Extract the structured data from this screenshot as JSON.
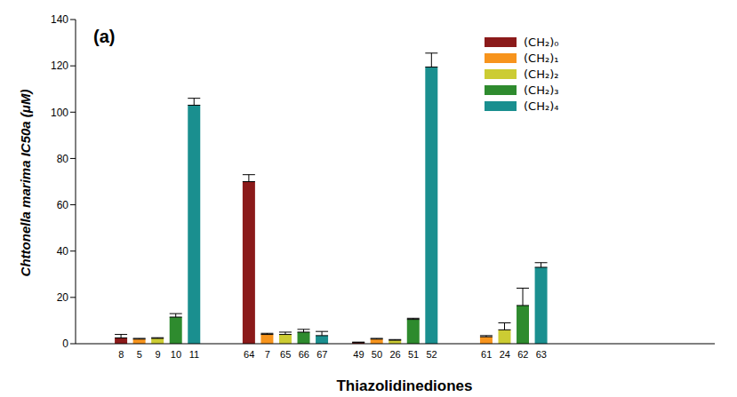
{
  "chart_data": {
    "type": "bar",
    "title": "(a)",
    "x_label": "Thiazolidinediones",
    "y_label": "Chttonella marima IC50a (μM)",
    "categories": [
      null,
      null,
      "8",
      "5",
      "9",
      "10",
      "11",
      null,
      null,
      "64",
      "7",
      "65",
      "66",
      "67",
      null,
      "49",
      "50",
      "26",
      "51",
      "52",
      null,
      null,
      "61",
      "24",
      "62",
      "63",
      null,
      null,
      null,
      null,
      null,
      null,
      null,
      null,
      null
    ],
    "series": [
      {
        "name": "(CH₂)₀",
        "color": "#8b1a1a",
        "values": [
          null,
          null,
          2.5,
          null,
          null,
          null,
          null,
          null,
          null,
          70,
          null,
          null,
          null,
          null,
          null,
          0.5,
          null,
          null,
          null,
          null,
          null,
          null,
          null,
          null,
          null,
          null,
          null,
          null,
          null,
          null,
          null,
          null,
          null,
          null,
          null
        ],
        "errors": [
          null,
          null,
          1.5,
          null,
          null,
          null,
          null,
          null,
          null,
          3,
          null,
          null,
          null,
          null,
          null,
          0.2,
          null,
          null,
          null,
          null,
          null,
          null,
          null,
          null,
          null,
          null,
          null,
          null,
          null,
          null,
          null,
          null,
          null,
          null,
          null
        ]
      },
      {
        "name": "(CH₂)₁",
        "color": "#f7941d",
        "values": [
          null,
          null,
          null,
          2,
          null,
          null,
          null,
          null,
          null,
          null,
          4,
          null,
          null,
          null,
          null,
          null,
          2,
          null,
          null,
          null,
          null,
          null,
          3,
          null,
          null,
          null,
          null,
          null,
          null,
          null,
          null,
          null,
          null,
          null,
          null
        ],
        "errors": [
          null,
          null,
          null,
          0.3,
          null,
          null,
          null,
          null,
          null,
          null,
          0.5,
          null,
          null,
          null,
          null,
          null,
          0.3,
          null,
          null,
          null,
          null,
          null,
          0.5,
          null,
          null,
          null,
          null,
          null,
          null,
          null,
          null,
          null,
          null,
          null,
          null
        ]
      },
      {
        "name": "(CH₂)₂",
        "color": "#cccc33",
        "values": [
          null,
          null,
          null,
          null,
          2.3,
          null,
          null,
          null,
          null,
          null,
          null,
          4,
          null,
          null,
          null,
          null,
          null,
          1.5,
          null,
          null,
          null,
          null,
          null,
          6,
          null,
          null,
          null,
          null,
          null,
          null,
          null,
          null,
          null,
          null,
          null
        ],
        "errors": [
          null,
          null,
          null,
          null,
          0.3,
          null,
          null,
          null,
          null,
          null,
          null,
          1,
          null,
          null,
          null,
          null,
          null,
          0.3,
          null,
          null,
          null,
          null,
          null,
          3,
          null,
          null,
          null,
          null,
          null,
          null,
          null,
          null,
          null,
          null,
          null
        ]
      },
      {
        "name": "(CH₂)₃",
        "color": "#2e8b2e",
        "values": [
          null,
          null,
          null,
          null,
          null,
          11.5,
          null,
          null,
          null,
          null,
          null,
          null,
          5,
          null,
          null,
          null,
          null,
          null,
          10.5,
          null,
          null,
          null,
          null,
          null,
          16.5,
          null,
          null,
          null,
          null,
          null,
          null,
          null,
          null,
          null,
          null
        ],
        "errors": [
          null,
          null,
          null,
          null,
          null,
          1.5,
          null,
          null,
          null,
          null,
          null,
          null,
          1.2,
          null,
          null,
          null,
          null,
          null,
          0.5,
          null,
          null,
          null,
          null,
          null,
          7.5,
          null,
          null,
          null,
          null,
          null,
          null,
          null,
          null,
          null,
          null
        ]
      },
      {
        "name": "(CH₂)₄",
        "color": "#1a8f8f",
        "values": [
          null,
          null,
          null,
          null,
          null,
          null,
          103,
          null,
          null,
          null,
          null,
          null,
          null,
          3.5,
          null,
          null,
          null,
          null,
          null,
          119.5,
          null,
          null,
          null,
          null,
          null,
          33,
          null,
          null,
          null,
          null,
          null,
          null,
          null,
          null,
          null
        ],
        "errors": [
          null,
          null,
          null,
          null,
          null,
          null,
          3,
          null,
          null,
          null,
          null,
          null,
          null,
          1.8,
          null,
          null,
          null,
          null,
          null,
          6,
          null,
          null,
          null,
          null,
          null,
          2,
          null,
          null,
          null,
          null,
          null,
          null,
          null,
          null,
          null
        ]
      }
    ],
    "ylim": [
      0,
      140
    ],
    "yticks": [
      0,
      20,
      40,
      60,
      80,
      100,
      120,
      140
    ],
    "legend": "upper right"
  }
}
